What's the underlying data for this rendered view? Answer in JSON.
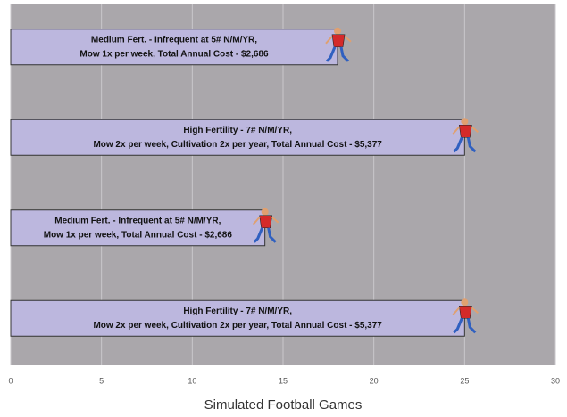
{
  "chart_data": {
    "type": "bar",
    "orientation": "horizontal",
    "xlabel": "Simulated Football Games",
    "categories": [
      [
        "Medium Fert. -  Infrequent at 5# N/M/YR,",
        "Mow 1x per week, Total Annual Cost -  $2,686"
      ],
      [
        "High Fertility - 7# N/M/YR,",
        "Mow 2x per week, Cultivation 2x per year, Total Annual Cost -  $5,377"
      ],
      [
        "Medium Fert. -  Infrequent at 5# N/M/YR,",
        "Mow 1x per week, Total Annual Cost -  $2,686"
      ],
      [
        "High Fertility - 7# N/M/YR,",
        "Mow 2x per week, Cultivation 2x per year, Total Annual Cost -  $5,377"
      ]
    ],
    "values": [
      18,
      25,
      14,
      25
    ],
    "color": "#bcb7de",
    "xlim": [
      0,
      30
    ],
    "xticks": [
      0,
      5,
      10,
      15,
      20,
      25,
      30
    ],
    "grid": true
  }
}
